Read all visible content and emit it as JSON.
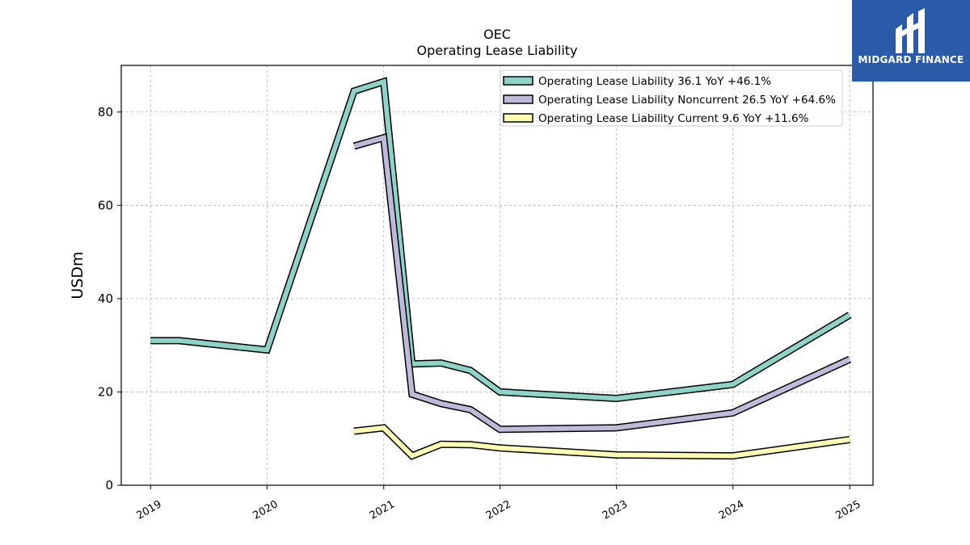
{
  "logo": {
    "text": "MIDGARD FINANCE",
    "icon": "midgard-logo-icon",
    "color": "#2b5aa8"
  },
  "chart_data": {
    "type": "line",
    "title": "OEC",
    "subtitle": "Operating Lease Liability",
    "ylabel": "USDm",
    "xlabel": "",
    "ylim": [
      0,
      90
    ],
    "yticks": [
      0,
      20,
      40,
      60,
      80
    ],
    "xticks": [
      "2019",
      "2020",
      "2021",
      "2022",
      "2023",
      "2024",
      "2025"
    ],
    "grid": true,
    "legend_position": "top-right",
    "series": [
      {
        "name": "Operating Lease Liability  36.1 YoY +46.1%",
        "color": "#8dd3c7",
        "points": [
          [
            "2019-01-01",
            31.0
          ],
          [
            "2019-04-01",
            31.0
          ],
          [
            "2020-01-01",
            29.0
          ],
          [
            "2020-09-30",
            84.5
          ],
          [
            "2021-01-01",
            86.5
          ],
          [
            "2021-03-31",
            26.0
          ],
          [
            "2021-06-30",
            26.2
          ],
          [
            "2021-09-30",
            24.6
          ],
          [
            "2021-12-31",
            20.0
          ],
          [
            "2022-12-31",
            18.6
          ],
          [
            "2023-12-31",
            21.6
          ],
          [
            "2025-01-01",
            36.5
          ]
        ]
      },
      {
        "name": "Operating Lease Liability Noncurrent  26.5 YoY +64.6%",
        "color": "#bebada",
        "points": [
          [
            "2020-09-30",
            72.7
          ],
          [
            "2021-01-01",
            74.5
          ],
          [
            "2021-03-31",
            19.5
          ],
          [
            "2021-06-30",
            17.5
          ],
          [
            "2021-09-30",
            16.2
          ],
          [
            "2021-12-31",
            12.0
          ],
          [
            "2022-12-31",
            12.3
          ],
          [
            "2023-12-31",
            15.5
          ],
          [
            "2025-01-01",
            27.0
          ]
        ]
      },
      {
        "name": "Operating Lease Liability Current  9.6 YoY +11.6%",
        "color": "#ffffb3",
        "points": [
          [
            "2020-09-30",
            11.6
          ],
          [
            "2021-01-01",
            12.3
          ],
          [
            "2021-03-31",
            6.3
          ],
          [
            "2021-06-30",
            8.8
          ],
          [
            "2021-09-30",
            8.7
          ],
          [
            "2021-12-31",
            8.0
          ],
          [
            "2022-12-31",
            6.5
          ],
          [
            "2023-12-31",
            6.3
          ],
          [
            "2025-01-01",
            9.8
          ]
        ]
      }
    ]
  }
}
